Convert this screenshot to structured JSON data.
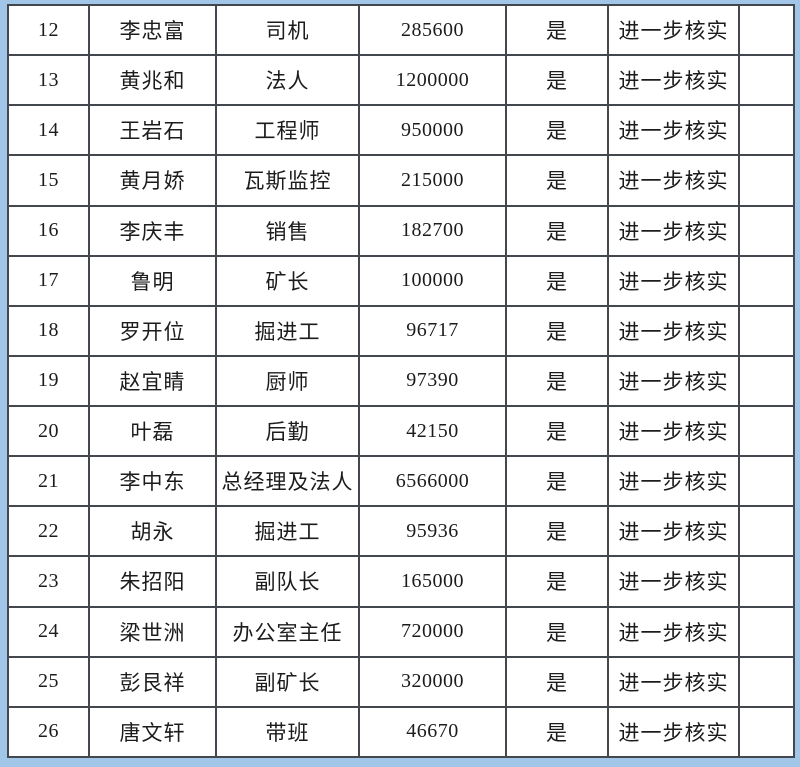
{
  "page": {
    "background_color": "#a2c6e8",
    "table_background_color": "#ffffff",
    "border_color": "#43474e",
    "text_color": "#1c1c1c"
  },
  "table": {
    "columns": [
      "index",
      "name",
      "title",
      "amount",
      "flag",
      "action",
      "blank"
    ],
    "rows": [
      {
        "no": "12",
        "name": "李忠富",
        "title": "司机",
        "amount": "285600",
        "flag": "是",
        "action": "进一步核实"
      },
      {
        "no": "13",
        "name": "黄兆和",
        "title": "法人",
        "amount": "1200000",
        "flag": "是",
        "action": "进一步核实"
      },
      {
        "no": "14",
        "name": "王岩石",
        "title": "工程师",
        "amount": "950000",
        "flag": "是",
        "action": "进一步核实"
      },
      {
        "no": "15",
        "name": "黄月娇",
        "title": "瓦斯监控",
        "amount": "215000",
        "flag": "是",
        "action": "进一步核实"
      },
      {
        "no": "16",
        "name": "李庆丰",
        "title": "销售",
        "amount": "182700",
        "flag": "是",
        "action": "进一步核实"
      },
      {
        "no": "17",
        "name": "鲁明",
        "title": "矿长",
        "amount": "100000",
        "flag": "是",
        "action": "进一步核实"
      },
      {
        "no": "18",
        "name": "罗开位",
        "title": "掘进工",
        "amount": "96717",
        "flag": "是",
        "action": "进一步核实"
      },
      {
        "no": "19",
        "name": "赵宜睛",
        "title": "厨师",
        "amount": "97390",
        "flag": "是",
        "action": "进一步核实"
      },
      {
        "no": "20",
        "name": "叶磊",
        "title": "后勤",
        "amount": "42150",
        "flag": "是",
        "action": "进一步核实"
      },
      {
        "no": "21",
        "name": "李中东",
        "title": "总经理及法人",
        "amount": "6566000",
        "flag": "是",
        "action": "进一步核实"
      },
      {
        "no": "22",
        "name": "胡永",
        "title": "掘进工",
        "amount": "95936",
        "flag": "是",
        "action": "进一步核实"
      },
      {
        "no": "23",
        "name": "朱招阳",
        "title": "副队长",
        "amount": "165000",
        "flag": "是",
        "action": "进一步核实"
      },
      {
        "no": "24",
        "name": "梁世洲",
        "title": "办公室主任",
        "amount": "720000",
        "flag": "是",
        "action": "进一步核实"
      },
      {
        "no": "25",
        "name": "彭艮祥",
        "title": "副矿长",
        "amount": "320000",
        "flag": "是",
        "action": "进一步核实"
      },
      {
        "no": "26",
        "name": "唐文轩",
        "title": "带班",
        "amount": "46670",
        "flag": "是",
        "action": "进一步核实"
      }
    ]
  }
}
